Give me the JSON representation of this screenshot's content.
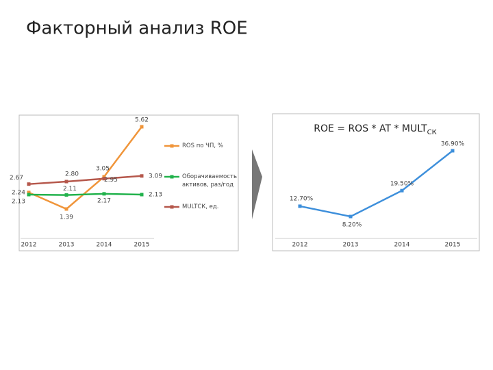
{
  "title": "Факторный анализ ROE",
  "chart_data": [
    {
      "type": "line",
      "categories": [
        "2012",
        "2013",
        "2014",
        "2015"
      ],
      "series": [
        {
          "name": "ROS по ЧП, %",
          "color": "#f0953a",
          "values": [
            2.24,
            1.39,
            3.05,
            5.62
          ],
          "value_labels": [
            "2.24",
            "1.39",
            "3.05",
            "5.62"
          ]
        },
        {
          "name": "Оборачиваемость активов, раз/год",
          "color": "#22b24c",
          "values": [
            2.13,
            2.11,
            2.17,
            2.13
          ],
          "value_labels": [
            "2.13",
            "2.11",
            "2.17",
            "2.13"
          ]
        },
        {
          "name": "MULTСК, ед.",
          "color": "#b5574b",
          "values": [
            2.67,
            2.8,
            2.95,
            3.09
          ],
          "value_labels": [
            "2.67",
            "2.80",
            "2.95",
            "3.09"
          ]
        }
      ]
    },
    {
      "type": "line",
      "title": "ROE = ROS * AT * MULT",
      "title_sub": "СК",
      "categories": [
        "2012",
        "2013",
        "2014",
        "2015"
      ],
      "series": [
        {
          "name": "ROE",
          "color": "#3d8fdb",
          "values": [
            12.7,
            8.2,
            19.5,
            36.9
          ],
          "value_labels": [
            "12.70%",
            "8.20%",
            "19.50%",
            "36.90%"
          ]
        }
      ]
    }
  ]
}
